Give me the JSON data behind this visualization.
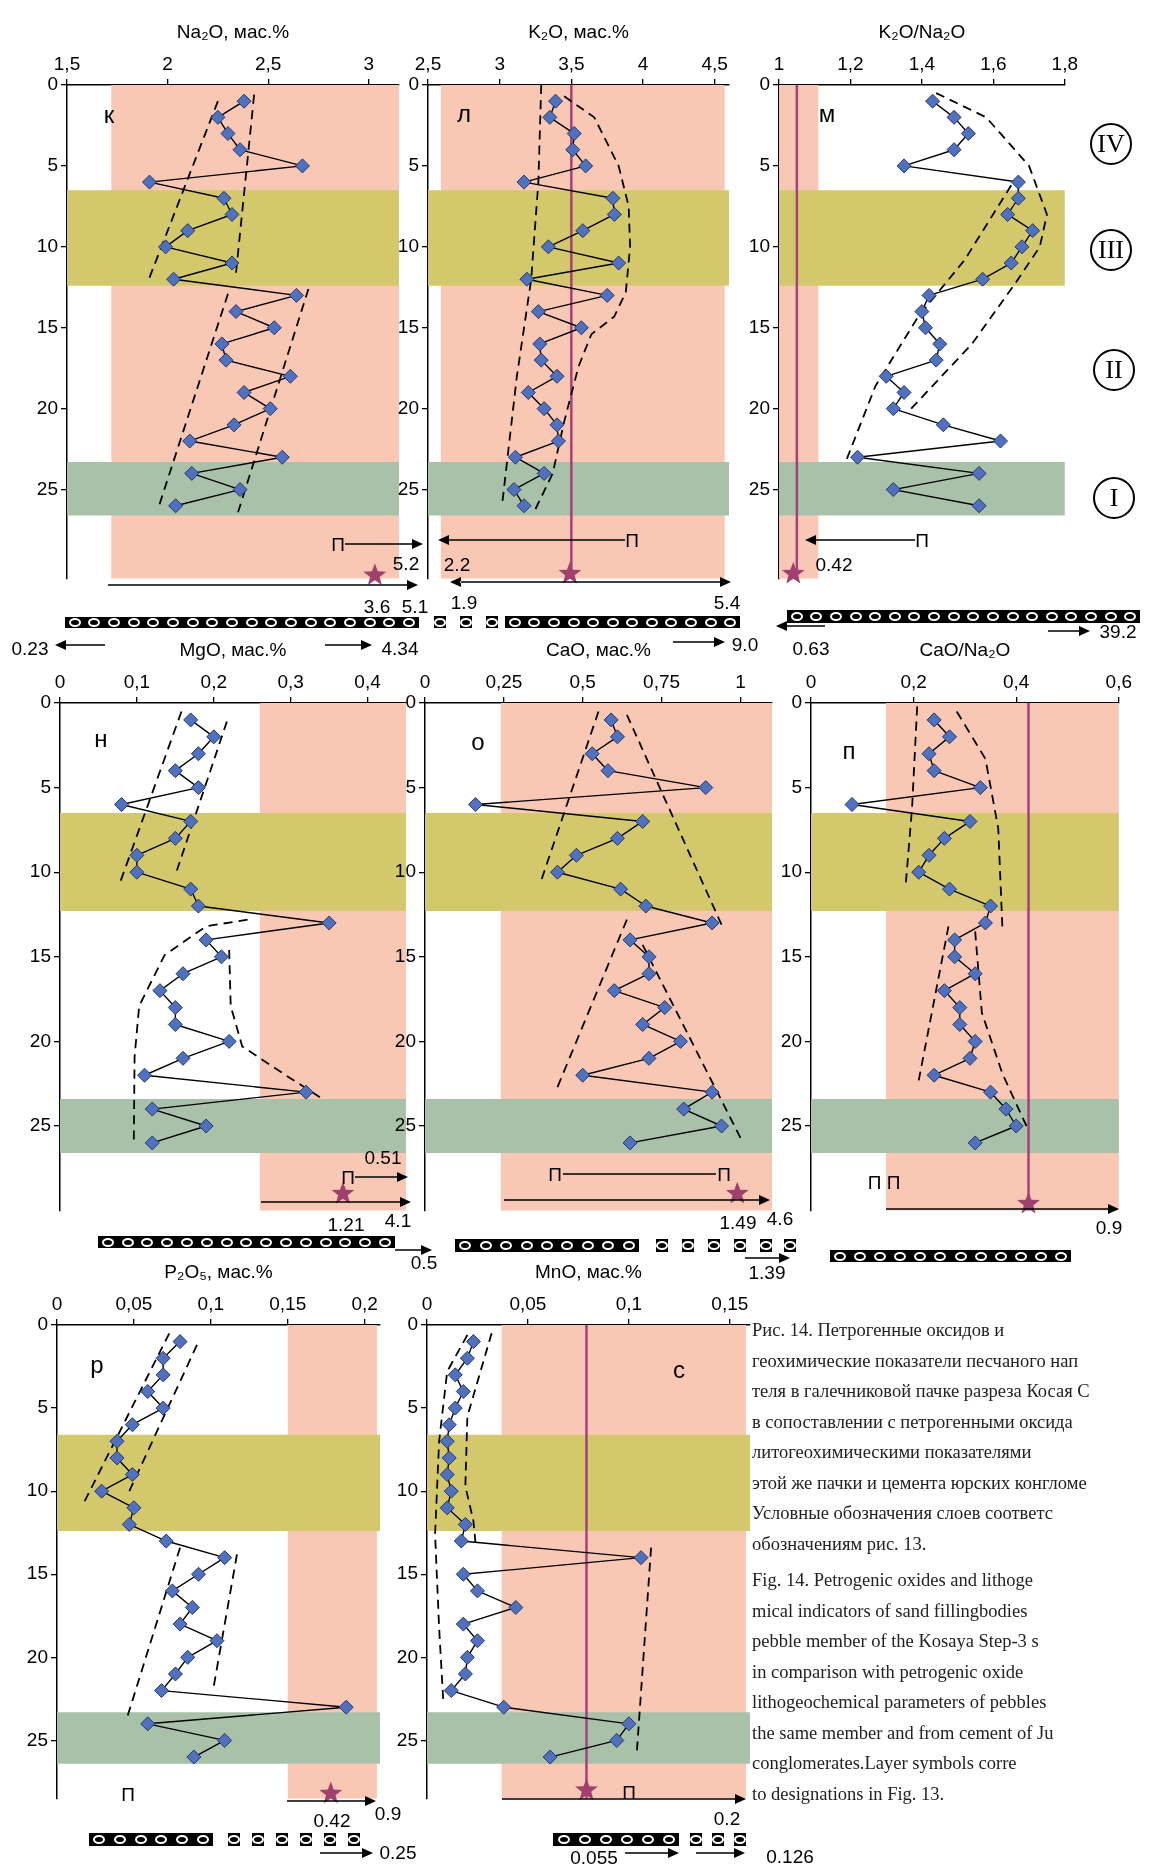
{
  "chart_data": [
    {
      "type": "line",
      "xlabel": "Na₂O, мас.%",
      "xlim": [
        1.5,
        3.15
      ],
      "xticks": [
        {
          "value": 1.5,
          "label": "1,5"
        },
        2,
        {
          "value": 2.5,
          "label": "2,5"
        },
        3
      ],
      "ylim": [
        30.5,
        0
      ],
      "yticks": [
        0,
        5,
        10,
        15,
        20,
        25
      ],
      "grid": false,
      "bands": [
        {
          "axis": "x",
          "from": 1.72,
          "to": 3.15,
          "color": "#f9c8b4"
        },
        {
          "axis": "y",
          "from": 6.5,
          "to": 12.4,
          "color": "#d3c96c"
        },
        {
          "axis": "y",
          "from": 23.3,
          "to": 26.6,
          "color": "#a9c1a8"
        }
      ],
      "series": [
        {
          "type": "line",
          "color": "#000000",
          "line_style": "dashed",
          "marker": "none",
          "x": [
            2.25,
            1.91
          ],
          "values": [
            1,
            11.9
          ]
        },
        {
          "type": "line",
          "color": "#000000",
          "line_style": "dashed",
          "marker": "none",
          "x": [
            2.3,
            1.96
          ],
          "values": [
            12.9,
            25.9
          ]
        },
        {
          "type": "line",
          "color": "#000000",
          "line_style": "dashed",
          "marker": "none",
          "x": [
            2.43,
            2.34
          ],
          "values": [
            0.6,
            11.6
          ]
        },
        {
          "type": "line",
          "color": "#000000",
          "line_style": "dashed",
          "marker": "none",
          "x": [
            2.7,
            2.35
          ],
          "values": [
            12.6,
            26.4
          ]
        },
        {
          "type": "line",
          "color": "#4f71be",
          "marker": "diamond",
          "x": [
            2.38,
            2.25,
            2.3,
            2.36,
            2.67,
            1.91,
            2.28,
            2.32,
            2.1,
            1.99,
            2.32,
            2.03,
            2.64,
            2.34,
            2.53,
            2.27,
            2.29,
            2.61,
            2.38,
            2.51,
            2.33,
            2.11,
            2.57,
            2.12,
            2.36,
            2.04
          ],
          "values": [
            1,
            2,
            3,
            4,
            5,
            6,
            7,
            8,
            9,
            10,
            11,
            12,
            13,
            14,
            15,
            16,
            17,
            18,
            19,
            20,
            21,
            22,
            23,
            24,
            25,
            26
          ]
        },
        {
          "type": "scatter",
          "color": "#a0406e",
          "marker": "star",
          "x": [
            3.03
          ],
          "values": [
            30.3
          ]
        }
      ],
      "annotations": [
        "к",
        "П",
        "5.2",
        "3.6",
        "5.1",
        "0.23",
        "4.34"
      ]
    },
    {
      "type": "line",
      "xlabel": "K₂O, мас.%",
      "xlim": [
        2.5,
        4.6
      ],
      "xticks": [
        {
          "value": 2.5,
          "label": "2,5"
        },
        3,
        {
          "value": 3.5,
          "label": "3,5"
        },
        4,
        {
          "value": 4.5,
          "label": "4,5"
        }
      ],
      "ylim": [
        30.5,
        0
      ],
      "yticks": [
        0,
        5,
        10,
        15,
        20,
        25
      ],
      "grid": false,
      "bands": [
        {
          "axis": "x",
          "from": 2.59,
          "to": 4.57,
          "color": "#f9c8b4"
        },
        {
          "axis": "y",
          "from": 6.5,
          "to": 12.4,
          "color": "#d3c96c"
        },
        {
          "axis": "y",
          "from": 23.3,
          "to": 26.6,
          "color": "#a9c1a8"
        }
      ],
      "ref_lines": [
        {
          "axis": "x",
          "value": 3.5,
          "color": "#a5417a"
        }
      ],
      "series": [
        {
          "type": "line",
          "color": "#000000",
          "line_style": "dashed",
          "marker": "none",
          "x": [
            3.29,
            3.27,
            3.22,
            3.12,
            3.02
          ],
          "values": [
            0,
            6,
            12,
            18,
            25.7
          ]
        },
        {
          "type": "line",
          "color": "#000000",
          "line_style": "dashed",
          "marker": "none",
          "x": [
            3.45,
            3.66,
            3.83,
            3.9,
            3.91,
            3.88,
            3.8,
            3.64,
            3.55,
            3.45,
            3.37,
            3.25
          ],
          "values": [
            0.7,
            2,
            5,
            7.5,
            10,
            12.8,
            14.3,
            15.4,
            17.4,
            20.8,
            24,
            26.2
          ]
        },
        {
          "type": "line",
          "color": "#4f71be",
          "marker": "diamond",
          "x": [
            3.39,
            3.35,
            3.52,
            3.51,
            3.6,
            3.17,
            3.79,
            3.8,
            3.58,
            3.34,
            3.83,
            3.19,
            3.75,
            3.27,
            3.57,
            3.28,
            3.29,
            3.4,
            3.2,
            3.31,
            3.4,
            3.41,
            3.11,
            3.31,
            3.1,
            3.17
          ],
          "values": [
            1,
            2,
            3,
            4,
            5,
            6,
            7,
            8,
            9,
            10,
            11,
            12,
            13,
            14,
            15,
            16,
            17,
            18,
            19,
            20,
            21,
            22,
            23,
            24,
            25,
            26
          ]
        },
        {
          "type": "scatter",
          "color": "#a0406e",
          "marker": "star",
          "x": [
            3.49
          ],
          "values": [
            30.2
          ]
        }
      ],
      "annotations": [
        "л",
        "П",
        "2.2",
        "1.9",
        "5.4",
        "9.0"
      ]
    },
    {
      "type": "line",
      "xlabel": "K₂O/Na₂O",
      "xlim": [
        1,
        1.8
      ],
      "xticks": [
        1,
        {
          "value": 1.2,
          "label": "1,2"
        },
        {
          "value": 1.4,
          "label": "1,4"
        },
        {
          "value": 1.6,
          "label": "1,6"
        },
        {
          "value": 1.8,
          "label": "1,8"
        }
      ],
      "ylim": [
        30.5,
        0
      ],
      "yticks": [
        0,
        5,
        10,
        15,
        20,
        25
      ],
      "grid": false,
      "bands": [
        {
          "axis": "x",
          "from": 1,
          "to": 1.11,
          "color": "#f9c8b4"
        },
        {
          "axis": "y",
          "from": 6.5,
          "to": 12.4,
          "color": "#d3c96c"
        },
        {
          "axis": "y",
          "from": 23.3,
          "to": 26.6,
          "color": "#a9c1a8"
        }
      ],
      "ref_lines": [
        {
          "axis": "x",
          "value": 1.05,
          "color": "#a5417a"
        }
      ],
      "series": [
        {
          "type": "line",
          "color": "#000000",
          "line_style": "dashed",
          "marker": "none",
          "x": [
            1.44,
            1.58,
            1.7,
            1.75,
            1.73,
            1.66,
            1.54,
            1.37
          ],
          "values": [
            0.5,
            2,
            5,
            8,
            10,
            12.3,
            16,
            20
          ]
        },
        {
          "type": "line",
          "color": "#000000",
          "line_style": "dashed",
          "marker": "none",
          "x": [
            1.65,
            1.52,
            1.39,
            1.27,
            1.19
          ],
          "values": [
            6.2,
            10.8,
            14.3,
            18.6,
            23.1
          ]
        },
        {
          "type": "line",
          "color": "#4f71be",
          "marker": "diamond",
          "x": [
            1.43,
            1.49,
            1.53,
            1.49,
            1.35,
            1.67,
            1.67,
            1.64,
            1.71,
            1.68,
            1.65,
            1.57,
            1.42,
            1.4,
            1.41,
            1.45,
            1.44,
            1.3,
            1.35,
            1.32,
            1.46,
            1.62,
            1.22,
            1.56,
            1.32,
            1.56
          ],
          "values": [
            1,
            2,
            3,
            4,
            5,
            6,
            7,
            8,
            9,
            10,
            11,
            12,
            13,
            14,
            15,
            16,
            17,
            18,
            19,
            20,
            21,
            22,
            23,
            24,
            25,
            26
          ]
        },
        {
          "type": "scatter",
          "color": "#a0406e",
          "marker": "star",
          "x": [
            1.04
          ],
          "values": [
            30.2
          ]
        }
      ],
      "annotations": [
        "м",
        "IV",
        "III",
        "II",
        "I",
        "П",
        "0.42",
        "0.63",
        "39.2"
      ]
    },
    {
      "type": "line",
      "xlabel": "MgO, мас.%",
      "xlim": [
        0,
        0.45
      ],
      "xticks": [
        0,
        {
          "value": 0.1,
          "label": "0,1"
        },
        {
          "value": 0.2,
          "label": "0,2"
        },
        {
          "value": 0.3,
          "label": "0,3"
        },
        {
          "value": 0.4,
          "label": "0,4"
        }
      ],
      "ylim": [
        30,
        0
      ],
      "yticks": [
        0,
        5,
        10,
        15,
        20,
        25
      ],
      "grid": false,
      "bands": [
        {
          "axis": "x",
          "from": 0.26,
          "to": 0.45,
          "color": "#f9c8b4"
        },
        {
          "axis": "y",
          "from": 6.5,
          "to": 12.3,
          "color": "#d3c96c"
        },
        {
          "axis": "y",
          "from": 23.4,
          "to": 26.6,
          "color": "#a9c1a8"
        }
      ],
      "series": [
        {
          "type": "line",
          "color": "#000000",
          "line_style": "dashed",
          "marker": "none",
          "x": [
            0.158,
            0.079
          ],
          "values": [
            0.5,
            10.5
          ]
        },
        {
          "type": "line",
          "color": "#000000",
          "line_style": "dashed",
          "marker": "none",
          "x": [
            0.217,
            0.152
          ],
          "values": [
            1.1,
            9.9
          ]
        },
        {
          "type": "line",
          "color": "#000000",
          "line_style": "dashed",
          "marker": "none",
          "x": [
            0.244,
            0.19,
            0.136,
            0.103,
            0.097,
            0.096
          ],
          "values": [
            12.8,
            13.2,
            14.9,
            17.9,
            20.9,
            25.8
          ]
        },
        {
          "type": "line",
          "color": "#000000",
          "line_style": "dashed",
          "marker": "none",
          "x": [
            0.22,
            0.222,
            0.237,
            0.297,
            0.338
          ],
          "values": [
            14.6,
            17.9,
            20.3,
            22.1,
            23.3
          ]
        },
        {
          "type": "line",
          "color": "#4f71be",
          "marker": "diamond",
          "x": [
            0.17,
            0.2,
            0.18,
            0.15,
            0.18,
            0.08,
            0.17,
            0.15,
            0.1,
            0.1,
            0.17,
            0.18,
            0.35,
            0.19,
            0.21,
            0.16,
            0.13,
            0.15,
            0.15,
            0.22,
            0.16,
            0.11,
            0.32,
            0.12,
            0.19,
            0.12
          ],
          "values": [
            1,
            2,
            3,
            4,
            5,
            6,
            7,
            8,
            9,
            10,
            11,
            12,
            13,
            14,
            15,
            16,
            17,
            18,
            19,
            20,
            21,
            22,
            23,
            24,
            25,
            26
          ]
        },
        {
          "type": "scatter",
          "color": "#a0406e",
          "marker": "star",
          "x": [
            0.368
          ],
          "values": [
            29.0
          ]
        }
      ],
      "annotations": [
        "н",
        "0.51",
        "П",
        "1.21",
        "4.1",
        "0.5"
      ]
    },
    {
      "type": "line",
      "xlabel": "CaO, мас.%",
      "xlim": [
        0,
        1.1
      ],
      "xticks": [
        0,
        {
          "value": 0.25,
          "label": "0,25"
        },
        {
          "value": 0.5,
          "label": "0,5"
        },
        {
          "value": 0.75,
          "label": "0,75"
        },
        1
      ],
      "ylim": [
        30,
        0
      ],
      "yticks": [
        0,
        5,
        10,
        15,
        20,
        25
      ],
      "grid": false,
      "bands": [
        {
          "axis": "x",
          "from": 0.24,
          "to": 1.1,
          "color": "#f9c8b4"
        },
        {
          "axis": "y",
          "from": 6.5,
          "to": 12.3,
          "color": "#d3c96c"
        },
        {
          "axis": "y",
          "from": 23.4,
          "to": 26.6,
          "color": "#a9c1a8"
        }
      ],
      "series": [
        {
          "type": "line",
          "color": "#000000",
          "line_style": "dashed",
          "marker": "none",
          "x": [
            0.55,
            0.37
          ],
          "values": [
            0.5,
            10.4
          ]
        },
        {
          "type": "line",
          "color": "#000000",
          "line_style": "dashed",
          "marker": "none",
          "x": [
            0.64,
            0.94
          ],
          "values": [
            0.7,
            13.1
          ]
        },
        {
          "type": "line",
          "color": "#000000",
          "line_style": "dashed",
          "marker": "none",
          "x": [
            0.64,
            0.42
          ],
          "values": [
            12.8,
            22.7
          ]
        },
        {
          "type": "line",
          "color": "#000000",
          "line_style": "dashed",
          "marker": "none",
          "x": [
            0.69,
            1.0
          ],
          "values": [
            14.3,
            25.7
          ]
        },
        {
          "type": "line",
          "color": "#4f71be",
          "marker": "diamond",
          "x": [
            0.59,
            0.61,
            0.53,
            0.58,
            0.89,
            0.16,
            0.69,
            0.61,
            0.48,
            0.42,
            0.62,
            0.7,
            0.91,
            0.65,
            0.71,
            0.71,
            0.6,
            0.76,
            0.69,
            0.81,
            0.71,
            0.5,
            0.91,
            0.82,
            0.94,
            0.65
          ],
          "values": [
            1,
            2,
            3,
            4,
            5,
            6,
            7,
            8,
            9,
            10,
            11,
            12,
            13,
            14,
            15,
            16,
            17,
            18,
            19,
            20,
            21,
            22,
            23,
            24,
            25,
            26
          ]
        },
        {
          "type": "scatter",
          "color": "#a0406e",
          "marker": "star",
          "x": [
            0.99
          ],
          "values": [
            29.0
          ]
        }
      ],
      "annotations": [
        "о",
        "П",
        "П",
        "1.49",
        "4.6",
        "1.39"
      ]
    },
    {
      "type": "line",
      "xlabel": "CaO/Na₂O",
      "xlim": [
        0,
        0.6
      ],
      "xticks": [
        0,
        {
          "value": 0.2,
          "label": "0,2"
        },
        {
          "value": 0.4,
          "label": "0,4"
        },
        {
          "value": 0.6,
          "label": "0,6"
        }
      ],
      "ylim": [
        30,
        0
      ],
      "yticks": [
        0,
        5,
        10,
        15,
        20,
        25
      ],
      "grid": false,
      "bands": [
        {
          "axis": "x",
          "from": 0.146,
          "to": 0.6,
          "color": "#f9c8b4"
        },
        {
          "axis": "y",
          "from": 6.5,
          "to": 12.3,
          "color": "#d3c96c"
        },
        {
          "axis": "y",
          "from": 23.4,
          "to": 26.6,
          "color": "#a9c1a8"
        }
      ],
      "ref_lines": [
        {
          "axis": "x",
          "value": 0.424,
          "color": "#a5417a"
        }
      ],
      "series": [
        {
          "type": "line",
          "color": "#000000",
          "line_style": "dashed",
          "marker": "none",
          "x": [
            0.207,
            0.197,
            0.185
          ],
          "values": [
            0.2,
            6.2,
            10.6
          ]
        },
        {
          "type": "line",
          "color": "#000000",
          "line_style": "dashed",
          "marker": "none",
          "x": [
            0.284,
            0.34,
            0.365,
            0.373
          ],
          "values": [
            0.5,
            3.3,
            7.4,
            13.2
          ]
        },
        {
          "type": "line",
          "color": "#000000",
          "line_style": "dashed",
          "marker": "none",
          "x": [
            0.268,
            0.24,
            0.21
          ],
          "values": [
            13.2,
            17.6,
            22.3
          ]
        },
        {
          "type": "line",
          "color": "#000000",
          "line_style": "dashed",
          "marker": "none",
          "x": [
            0.32,
            0.333,
            0.373,
            0.42
          ],
          "values": [
            13.5,
            18.3,
            21.9,
            25
          ]
        },
        {
          "type": "line",
          "color": "#4f71be",
          "marker": "diamond",
          "x": [
            0.24,
            0.27,
            0.23,
            0.24,
            0.33,
            0.08,
            0.31,
            0.26,
            0.23,
            0.21,
            0.27,
            0.35,
            0.34,
            0.28,
            0.28,
            0.32,
            0.26,
            0.29,
            0.29,
            0.32,
            0.31,
            0.24,
            0.35,
            0.38,
            0.4,
            0.32
          ],
          "values": [
            1,
            2,
            3,
            4,
            5,
            6,
            7,
            8,
            9,
            10,
            11,
            12,
            13,
            14,
            15,
            16,
            17,
            18,
            19,
            20,
            21,
            22,
            23,
            24,
            25,
            26
          ]
        },
        {
          "type": "scatter",
          "color": "#a0406e",
          "marker": "star",
          "x": [
            0.424
          ],
          "values": [
            29.6
          ]
        }
      ],
      "annotations": [
        "п",
        "П П",
        "0.9"
      ]
    },
    {
      "type": "line",
      "xlabel": "P₂O₅, мас.%",
      "xlim": [
        0,
        0.21
      ],
      "xticks": [
        0,
        {
          "value": 0.05,
          "label": "0,05"
        },
        {
          "value": 0.1,
          "label": "0,1"
        },
        {
          "value": 0.15,
          "label": "0,15"
        },
        {
          "value": 0.2,
          "label": "0,2"
        }
      ],
      "ylim": [
        28.5,
        0
      ],
      "yticks": [
        0,
        5,
        10,
        15,
        20,
        25
      ],
      "grid": false,
      "bands": [
        {
          "axis": "x",
          "from": 0.15,
          "to": 0.208,
          "color": "#f9c8b4"
        },
        {
          "axis": "y",
          "from": 6.6,
          "to": 12.4,
          "color": "#d3c96c"
        },
        {
          "axis": "y",
          "from": 23.3,
          "to": 26.4,
          "color": "#a9c1a8"
        }
      ],
      "series": [
        {
          "type": "line",
          "color": "#000000",
          "line_style": "dashed",
          "marker": "none",
          "x": [
            0.073,
            0.018
          ],
          "values": [
            0.5,
            10.6
          ]
        },
        {
          "type": "line",
          "color": "#000000",
          "line_style": "dashed",
          "marker": "none",
          "x": [
            0.091,
            0.047
          ],
          "values": [
            1.2,
            10
          ]
        },
        {
          "type": "line",
          "color": "#000000",
          "line_style": "dashed",
          "marker": "none",
          "x": [
            0.08,
            0.046
          ],
          "values": [
            13.4,
            23.5
          ]
        },
        {
          "type": "line",
          "color": "#000000",
          "line_style": "dashed",
          "marker": "none",
          "x": [
            0.117,
            0.102
          ],
          "values": [
            13.8,
            21.7
          ]
        },
        {
          "type": "line",
          "color": "#4f71be",
          "marker": "diamond",
          "x": [
            0.08,
            0.069,
            0.069,
            0.059,
            0.069,
            0.049,
            0.039,
            0.039,
            0.049,
            0.029,
            0.05,
            0.047,
            0.071,
            0.109,
            0.092,
            0.075,
            0.088,
            0.08,
            0.104,
            0.085,
            0.077,
            0.068,
            0.188,
            0.059,
            0.109,
            0.089
          ],
          "values": [
            1,
            2,
            3,
            4,
            5,
            6,
            7,
            8,
            9,
            10,
            11,
            12,
            13,
            14,
            15,
            16,
            17,
            18,
            19,
            20,
            21,
            22,
            23,
            24,
            25,
            26
          ]
        },
        {
          "type": "scatter",
          "color": "#a0406e",
          "marker": "star",
          "x": [
            0.178
          ],
          "values": [
            28.2
          ]
        }
      ],
      "annotations": [
        "р",
        "П",
        "0.42",
        "0.9",
        "0.25"
      ]
    },
    {
      "type": "line",
      "xlabel": "MnO, мас.%",
      "xlim": [
        0,
        0.16
      ],
      "xticks": [
        0,
        {
          "value": 0.05,
          "label": "0,05"
        },
        {
          "value": 0.1,
          "label": "0,1"
        },
        {
          "value": 0.15,
          "label": "0,15"
        }
      ],
      "ylim": [
        28.5,
        0
      ],
      "yticks": [
        0,
        5,
        10,
        15,
        20,
        25
      ],
      "grid": false,
      "bands": [
        {
          "axis": "x",
          "from": 0.037,
          "to": 0.158,
          "color": "#f9c8b4"
        },
        {
          "axis": "y",
          "from": 6.6,
          "to": 12.4,
          "color": "#d3c96c"
        },
        {
          "axis": "y",
          "from": 23.3,
          "to": 26.4,
          "color": "#a9c1a8"
        }
      ],
      "ref_lines": [
        {
          "axis": "x",
          "value": 0.079,
          "color": "#a5417a"
        }
      ],
      "series": [
        {
          "type": "line",
          "color": "#000000",
          "line_style": "dashed",
          "marker": "none",
          "x": [
            0.02,
            0.01,
            0.006,
            0.004,
            0.006,
            0.008
          ],
          "values": [
            0.6,
            2.8,
            7,
            12.6,
            18.2,
            22.5
          ]
        },
        {
          "type": "line",
          "color": "#000000",
          "line_style": "dashed",
          "marker": "none",
          "x": [
            0.032,
            0.02,
            0.019,
            0.023,
            0.024
          ],
          "values": [
            0.5,
            5.5,
            9.7,
            11.8,
            13.1
          ]
        },
        {
          "type": "line",
          "color": "#000000",
          "line_style": "dashed",
          "marker": "none",
          "x": [
            0.111,
            0.104
          ],
          "values": [
            13.4,
            25.6
          ]
        },
        {
          "type": "line",
          "color": "#4f71be",
          "marker": "diamond",
          "x": [
            0.023,
            0.02,
            0.014,
            0.018,
            0.014,
            0.011,
            0.01,
            0.011,
            0.01,
            0.012,
            0.01,
            0.019,
            0.017,
            0.106,
            0.018,
            0.025,
            0.044,
            0.018,
            0.025,
            0.02,
            0.019,
            0.012,
            0.038,
            0.1,
            0.094,
            0.061
          ],
          "values": [
            1,
            2,
            3,
            4,
            5,
            6,
            7,
            8,
            9,
            10,
            11,
            12,
            13,
            14,
            15,
            16,
            17,
            18,
            19,
            20,
            21,
            22,
            23,
            24,
            25,
            26
          ]
        },
        {
          "type": "scatter",
          "color": "#a0406e",
          "marker": "star",
          "x": [
            0.079
          ],
          "values": [
            28.0
          ]
        }
      ],
      "annotations": [
        "с",
        "П",
        "0.2",
        "0.055",
        "0.126"
      ]
    },
    {
      "type": "other",
      "annotations": [
        "Рис. 14. Петрогенные оксидов и\nгеохимические показатели песчаного нап\nтеля в галечниковой пачке разреза Косая С\nв сопоставлении с петрогенными оксида\nлитогеохимическими показателями\nэтой же пачки и цемента юрских конгломе\nУсловные обозначения слоев соответс\nобозначениям рис. 13.",
        "Fig. 14. Petrogenic oxides and lithoge\nmical indicators of sand fillingbodies\npebble member of the Kosaya Step-3 s\nin comparison with petrogenic oxide\nlithogeochemical parameters of pebbles\nthe same member and from cement of Ju\nconglomerates.Layer symbols corre\nto designations in Fig. 13."
      ]
    }
  ]
}
